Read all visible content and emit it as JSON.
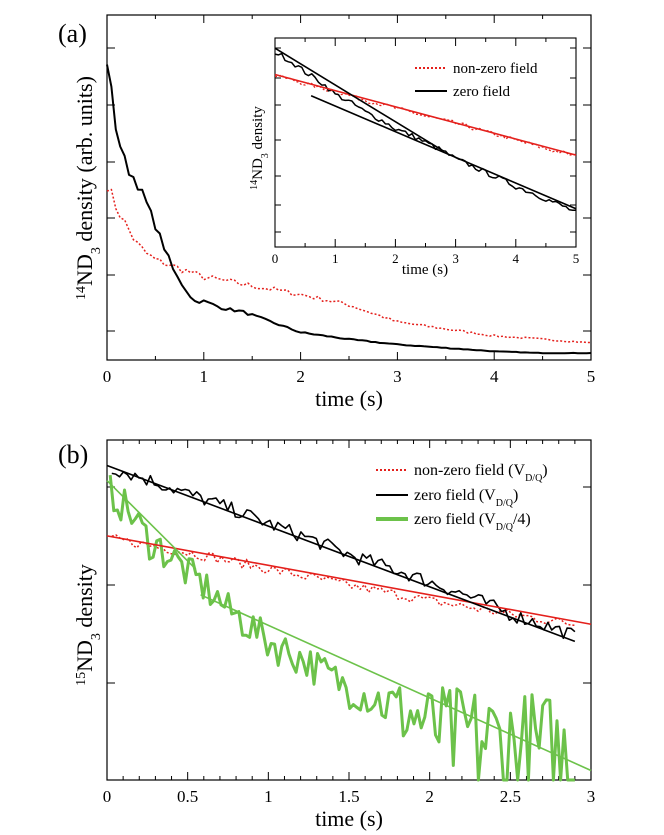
{
  "panel_a": {
    "label": "(a)",
    "xlabel": "time (s)",
    "ylabel": {
      "sup": "14",
      "main": "ND",
      "sub": "3",
      "rest": " density (arb. units)"
    },
    "x_ticks": [
      "0",
      "1",
      "2",
      "3",
      "4",
      "5"
    ],
    "inset": {
      "xlabel": "time (s)",
      "ylabel": {
        "sup": "14",
        "main": "ND",
        "sub": "3",
        "rest": " density"
      },
      "x_ticks": [
        "0",
        "1",
        "2",
        "3",
        "4",
        "5"
      ],
      "legend": [
        "non-zero field",
        "zero field"
      ]
    }
  },
  "panel_b": {
    "label": "(b)",
    "xlabel": "time (s)",
    "ylabel": {
      "sup": "15",
      "main": "ND",
      "sub": "3",
      "rest": " density"
    },
    "x_ticks": [
      "0",
      "0.5",
      "1",
      "1.5",
      "2",
      "2.5",
      "3"
    ],
    "legend": [
      {
        "text": "non-zero field (V",
        "sub": "D/Q",
        "tail": ")"
      },
      {
        "text": "zero field (V",
        "sub": "D/Q",
        "tail": ")"
      },
      {
        "text": "zero field (V",
        "sub": "D/Q",
        "tail": "/4)"
      }
    ]
  },
  "colors": {
    "red": "#e4201c",
    "black": "#000000",
    "green": "#6cc24a"
  },
  "chart_data": [
    {
      "type": "line",
      "panel": "(a)",
      "xlim": [
        0,
        5
      ],
      "ylim": [
        0,
        1
      ],
      "grid": false,
      "series": [
        {
          "name": "zero field",
          "style": "solid",
          "color": "#000000",
          "x": [
            0,
            0.1,
            0.2,
            0.3,
            0.4,
            0.5,
            0.6,
            0.7,
            0.8,
            0.9,
            1.0,
            1.2,
            1.4,
            1.6,
            1.8,
            2.0,
            2.5,
            3.0,
            3.5,
            4.0,
            4.5,
            5.0
          ],
          "y": [
            0.87,
            0.66,
            0.56,
            0.52,
            0.46,
            0.39,
            0.32,
            0.25,
            0.21,
            0.17,
            0.17,
            0.15,
            0.14,
            0.12,
            0.1,
            0.08,
            0.06,
            0.045,
            0.035,
            0.025,
            0.02,
            0.02
          ]
        },
        {
          "name": "non-zero field",
          "style": "dotted",
          "color": "#e4201c",
          "x": [
            0,
            0.1,
            0.2,
            0.3,
            0.4,
            0.5,
            0.6,
            0.7,
            0.8,
            0.9,
            1.0,
            1.2,
            1.4,
            1.6,
            1.8,
            2.0,
            2.5,
            3.0,
            3.5,
            4.0,
            4.5,
            5.0
          ],
          "y": [
            0.51,
            0.44,
            0.39,
            0.34,
            0.31,
            0.29,
            0.28,
            0.27,
            0.26,
            0.25,
            0.24,
            0.23,
            0.22,
            0.21,
            0.2,
            0.19,
            0.16,
            0.11,
            0.09,
            0.07,
            0.06,
            0.05
          ]
        }
      ]
    },
    {
      "type": "line",
      "panel": "(a) inset",
      "xlim": [
        0,
        5
      ],
      "yscale": "log",
      "ylim": [
        0.01,
        1.2
      ],
      "legend_position": "top-right",
      "series": [
        {
          "name": "non-zero field",
          "style": "dotted",
          "color": "#e4201c",
          "x": [
            0,
            0.5,
            1.0,
            1.5,
            2.0,
            2.5,
            3.0,
            3.5,
            4.0,
            4.5,
            5.0
          ],
          "y": [
            0.51,
            0.42,
            0.35,
            0.29,
            0.24,
            0.2,
            0.17,
            0.14,
            0.115,
            0.095,
            0.08
          ]
        },
        {
          "name": "zero field",
          "style": "solid",
          "color": "#000000",
          "x": [
            0,
            0.5,
            1.0,
            1.5,
            2.0,
            2.5,
            3.0,
            3.5,
            4.0,
            4.5,
            5.0
          ],
          "y": [
            0.87,
            0.55,
            0.33,
            0.22,
            0.15,
            0.11,
            0.075,
            0.055,
            0.04,
            0.03,
            0.022
          ]
        }
      ]
    },
    {
      "type": "line",
      "panel": "(b)",
      "xlim": [
        0,
        3
      ],
      "yscale": "log",
      "ylim": [
        0.04,
        1.2
      ],
      "legend_position": "top-right",
      "series": [
        {
          "name": "non-zero field (V_D/Q)",
          "style": "dotted",
          "color": "#e4201c",
          "x": [
            0,
            0.5,
            1.0,
            1.5,
            2.0,
            2.5,
            2.9
          ],
          "y": [
            0.45,
            0.39,
            0.33,
            0.28,
            0.24,
            0.21,
            0.19
          ]
        },
        {
          "name": "zero field (V_D/Q)",
          "style": "solid",
          "color": "#000000",
          "x": [
            0,
            0.5,
            1.0,
            1.5,
            2.0,
            2.5,
            2.9
          ],
          "y": [
            0.92,
            0.7,
            0.52,
            0.38,
            0.29,
            0.21,
            0.17
          ]
        },
        {
          "name": "zero field (V_D/Q/4)",
          "style": "solid",
          "color": "#6cc24a",
          "x": [
            0,
            0.25,
            0.5,
            0.75,
            1.0,
            1.5,
            2.0,
            2.5,
            2.9
          ],
          "y": [
            0.75,
            0.45,
            0.32,
            0.22,
            0.16,
            0.1,
            0.07,
            0.055,
            0.045
          ]
        }
      ]
    }
  ]
}
